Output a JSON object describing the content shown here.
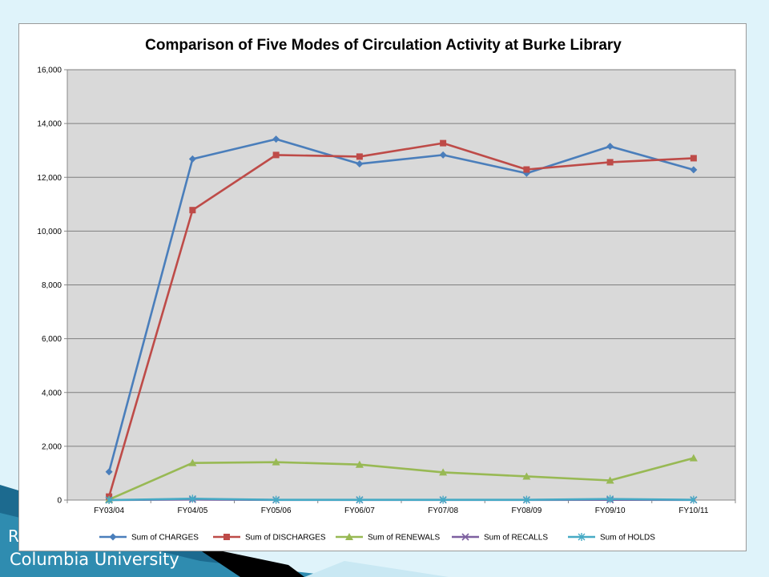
{
  "footer": {
    "partial": "R",
    "institution": "Columbia University"
  },
  "chart_data": {
    "type": "line",
    "title": "Comparison of Five Modes of Circulation Activity at Burke Library",
    "xlabel": "",
    "ylabel": "",
    "categories": [
      "FY03/04",
      "FY04/05",
      "FY05/06",
      "FY06/07",
      "FY07/08",
      "FY08/09",
      "FY09/10",
      "FY10/11"
    ],
    "ylim": [
      0,
      16000
    ],
    "yticks": [
      0,
      2000,
      4000,
      6000,
      8000,
      10000,
      12000,
      14000,
      16000
    ],
    "ytick_labels": [
      "0",
      "2,000",
      "4,000",
      "6,000",
      "8,000",
      "10,000",
      "12,000",
      "14,000",
      "16,000"
    ],
    "grid": true,
    "legend_position": "bottom",
    "series": [
      {
        "name": "Sum of CHARGES",
        "color": "#4a7ebb",
        "marker": "diamond",
        "values": [
          1050,
          12680,
          13420,
          12500,
          12830,
          12150,
          13150,
          12280
        ]
      },
      {
        "name": "Sum of DISCHARGES",
        "color": "#be4b48",
        "marker": "square",
        "values": [
          130,
          10780,
          12830,
          12770,
          13270,
          12290,
          12560,
          12710
        ]
      },
      {
        "name": "Sum of RENEWALS",
        "color": "#98b954",
        "marker": "triangle",
        "values": [
          20,
          1380,
          1410,
          1320,
          1030,
          880,
          730,
          1560
        ]
      },
      {
        "name": "Sum of RECALLS",
        "color": "#7d60a0",
        "marker": "x",
        "values": [
          0,
          20,
          5,
          5,
          5,
          5,
          10,
          5
        ]
      },
      {
        "name": "Sum of HOLDS",
        "color": "#46aac5",
        "marker": "star",
        "values": [
          0,
          50,
          10,
          10,
          10,
          10,
          40,
          10
        ]
      }
    ]
  }
}
